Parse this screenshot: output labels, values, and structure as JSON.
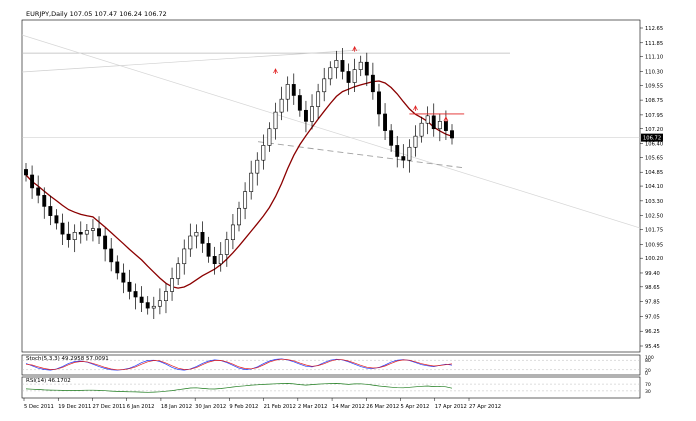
{
  "header": {
    "symbol_info": "EURJPY,Daily  107.05 107.47 106.24 106.72"
  },
  "colors": {
    "up_candle": "#ffffff",
    "down_candle": "#000000",
    "moving_average": "#8b0000",
    "stoch_main": "#1e3cff",
    "stoch_signal": "#e02020",
    "rsi": "#1a7a1a",
    "resistance_line": "#e02020",
    "grid": "#c8c8c8",
    "last_price_box": "#000000"
  },
  "chart_data": [
    {
      "type": "candlestick",
      "title": "EURJPY,Daily  107.05 107.47 106.24 106.72",
      "y_tick_labels": [
        "112.65",
        "111.85",
        "111.10",
        "110.30",
        "109.55",
        "108.75",
        "107.95",
        "107.20",
        "106.40",
        "105.65",
        "104.85",
        "104.10",
        "103.30",
        "102.50",
        "101.75",
        "100.95",
        "100.20",
        "99.40",
        "98.65",
        "97.85",
        "97.05",
        "96.25",
        "95.45"
      ],
      "ylim": [
        95.45,
        112.65
      ],
      "last_price_label": "106.72",
      "x_tick_labels": [
        "5 Dec 2011",
        "19 Dec 2011",
        "27 Dec 2011",
        "6 Jan 2012",
        "18 Jan 2012",
        "30 Jan 2012",
        "9 Feb 2012",
        "21 Feb 2012",
        "2 Mar 2012",
        "14 Mar 2012",
        "26 Mar 2012",
        "5 Apr 2012",
        "17 Apr 2012",
        "27 Apr 2012"
      ],
      "close_series": [
        104.7,
        104.0,
        103.6,
        103.0,
        102.5,
        102.1,
        101.5,
        101.2,
        101.6,
        101.5,
        101.7,
        101.8,
        101.4,
        100.7,
        100.0,
        99.4,
        98.9,
        98.4,
        98.1,
        97.8,
        97.5,
        97.6,
        97.9,
        98.4,
        99.1,
        99.9,
        100.7,
        101.4,
        101.6,
        101.0,
        100.3,
        99.9,
        100.4,
        101.2,
        102.0,
        102.9,
        103.8,
        104.8,
        105.5,
        106.3,
        107.2,
        108.1,
        108.8,
        109.6,
        109.0,
        108.2,
        107.6,
        108.4,
        109.2,
        109.9,
        110.5,
        110.9,
        110.3,
        109.7,
        110.4,
        110.8,
        110.1,
        109.2,
        108.0,
        107.1,
        106.3,
        105.7,
        105.5,
        106.2,
        106.8,
        107.5,
        107.9,
        107.2,
        107.6,
        107.1,
        106.7
      ],
      "moving_average_label": "",
      "annotations": [
        {
          "type": "fractal-up",
          "x_index": 41,
          "value": 110.0
        },
        {
          "type": "fractal-up",
          "x_index": 54,
          "value": 111.2
        },
        {
          "type": "fractal-up",
          "x_index": 64,
          "value": 108.0
        },
        {
          "type": "fractal-up",
          "x_index": 69,
          "value": 107.4
        },
        {
          "type": "resistance",
          "x_from": 63,
          "x_to": 72,
          "value": 108.0
        },
        {
          "type": "horizontal",
          "value": 111.4
        },
        {
          "type": "neckline",
          "from_value": 106.5,
          "to_value": 105.1
        }
      ]
    },
    {
      "type": "line",
      "title": "Stoch(5,3,3) 49.2958 57.0091",
      "y_tick_labels": [
        "100",
        "80",
        "20",
        "0"
      ],
      "ylim": [
        0,
        100
      ],
      "series": [
        {
          "values": [
            60,
            45,
            30,
            22,
            18,
            25,
            40,
            60,
            72,
            75,
            68,
            55,
            40,
            28,
            20,
            18,
            22,
            30,
            45,
            65,
            78,
            80,
            72,
            55,
            35,
            22,
            18,
            25,
            40,
            60,
            75,
            82,
            78,
            65,
            48,
            30,
            22,
            25,
            38,
            58,
            75,
            85,
            88,
            82,
            70,
            55,
            42,
            38,
            48,
            65,
            80,
            86,
            82,
            70,
            55,
            40,
            30,
            28,
            35,
            50,
            68,
            80,
            84,
            78,
            65,
            52,
            45,
            40,
            48,
            55,
            49
          ]
        },
        {
          "values": [
            55,
            50,
            38,
            28,
            22,
            24,
            35,
            52,
            66,
            72,
            70,
            60,
            48,
            35,
            25,
            20,
            21,
            27,
            38,
            55,
            70,
            78,
            76,
            62,
            45,
            30,
            22,
            24,
            34,
            52,
            68,
            78,
            79,
            70,
            55,
            38,
            28,
            26,
            33,
            50,
            68,
            80,
            86,
            84,
            76,
            62,
            50,
            42,
            46,
            58,
            74,
            83,
            83,
            75,
            62,
            48,
            36,
            31,
            33,
            44,
            60,
            75,
            82,
            80,
            70,
            58,
            50,
            44,
            47,
            52,
            57
          ]
        }
      ]
    },
    {
      "type": "line",
      "title": "RSI(14) 46.1702",
      "y_tick_labels": [
        "70",
        "30"
      ],
      "ylim": [
        0,
        100
      ],
      "series": [
        {
          "values": [
            42,
            40,
            38,
            36,
            35,
            34,
            33,
            32,
            33,
            33,
            34,
            34,
            33,
            31,
            29,
            27,
            26,
            25,
            24,
            23,
            22,
            23,
            25,
            28,
            32,
            37,
            42,
            47,
            48,
            45,
            42,
            41,
            44,
            48,
            53,
            57,
            60,
            64,
            66,
            68,
            70,
            72,
            73,
            74,
            71,
            67,
            64,
            67,
            70,
            72,
            73,
            74,
            71,
            68,
            71,
            72,
            69,
            64,
            59,
            55,
            52,
            49,
            48,
            51,
            54,
            57,
            59,
            55,
            57,
            54,
            46
          ]
        }
      ]
    }
  ]
}
